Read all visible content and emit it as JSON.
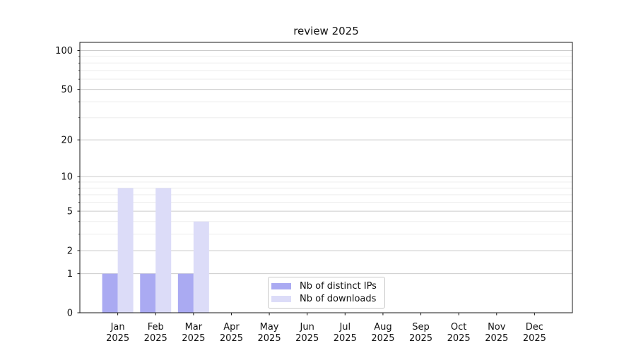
{
  "chart_data": {
    "type": "bar",
    "title": "review 2025",
    "categories": [
      "Jan",
      "Feb",
      "Mar",
      "Apr",
      "May",
      "Jun",
      "Jul",
      "Aug",
      "Sep",
      "Oct",
      "Nov",
      "Dec"
    ],
    "category_year": "2025",
    "series": [
      {
        "name": "Nb of distinct IPs",
        "color": "#aaaaf2",
        "values": [
          1,
          1,
          1,
          0,
          0,
          0,
          0,
          0,
          0,
          0,
          0,
          0
        ]
      },
      {
        "name": "Nb of downloads",
        "color": "#dcdcf8",
        "values": [
          8,
          8,
          4,
          0,
          0,
          0,
          0,
          0,
          0,
          0,
          0,
          0
        ]
      }
    ],
    "yscale": "log1p",
    "ylim": [
      0,
      115
    ],
    "y_major_ticks": [
      0,
      1,
      2,
      5,
      10,
      20,
      50,
      100
    ],
    "y_major_tick_labels": [
      "0",
      "1",
      "2",
      "5",
      "10",
      "20",
      "50",
      "100"
    ],
    "y_minor_ticks": [
      3,
      4,
      6,
      7,
      8,
      9,
      30,
      40,
      60,
      70,
      80,
      90
    ],
    "xlabel": "",
    "ylabel": "",
    "grid": "horizontal",
    "legend_position": "lower-center"
  },
  "colors": {
    "background": "#ffffff",
    "bar_distinct_ips": "#aaaaf2",
    "bar_downloads": "#dcdcf8",
    "grid_major": "#cccccc",
    "grid_minor": "#ededed",
    "spine": "#1a1a1a",
    "text": "#111111",
    "legend_border": "#c9c9c9"
  }
}
